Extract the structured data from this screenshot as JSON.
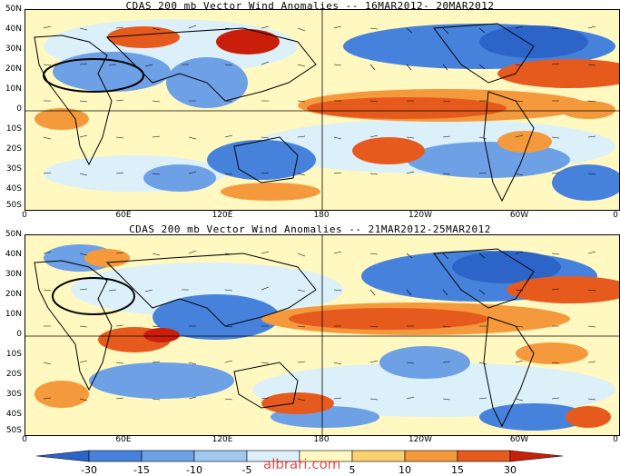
{
  "panels": [
    {
      "title": "CDAS 200 mb Vector Wind Anomalies -- 16MAR2012- 20MAR2012"
    },
    {
      "title": "CDAS 200 mb Vector Wind Anomalies -- 21MAR2012-25MAR2012"
    }
  ],
  "lat_labels": [
    "50N",
    "40N",
    "30N",
    "20N",
    "10N",
    "0",
    "10S",
    "20S",
    "30S",
    "40S",
    "50S"
  ],
  "lon_labels": [
    "0",
    "60E",
    "120E",
    "180",
    "120W",
    "60W",
    "0"
  ],
  "colorbar": {
    "labels": [
      "-30",
      "-15",
      "-10",
      "-5",
      "5",
      "10",
      "15",
      "30"
    ],
    "colors": [
      "#2c64c8",
      "#4682dc",
      "#6ea0e6",
      "#a0c8f0",
      "#dcf0fa",
      "#fff8c0",
      "#fad070",
      "#f59a3c",
      "#e65a1e",
      "#c81e0a"
    ]
  },
  "watermark": "albrari.com",
  "colors": {
    "negative": "#4682dc",
    "positive": "#e65a1e"
  }
}
